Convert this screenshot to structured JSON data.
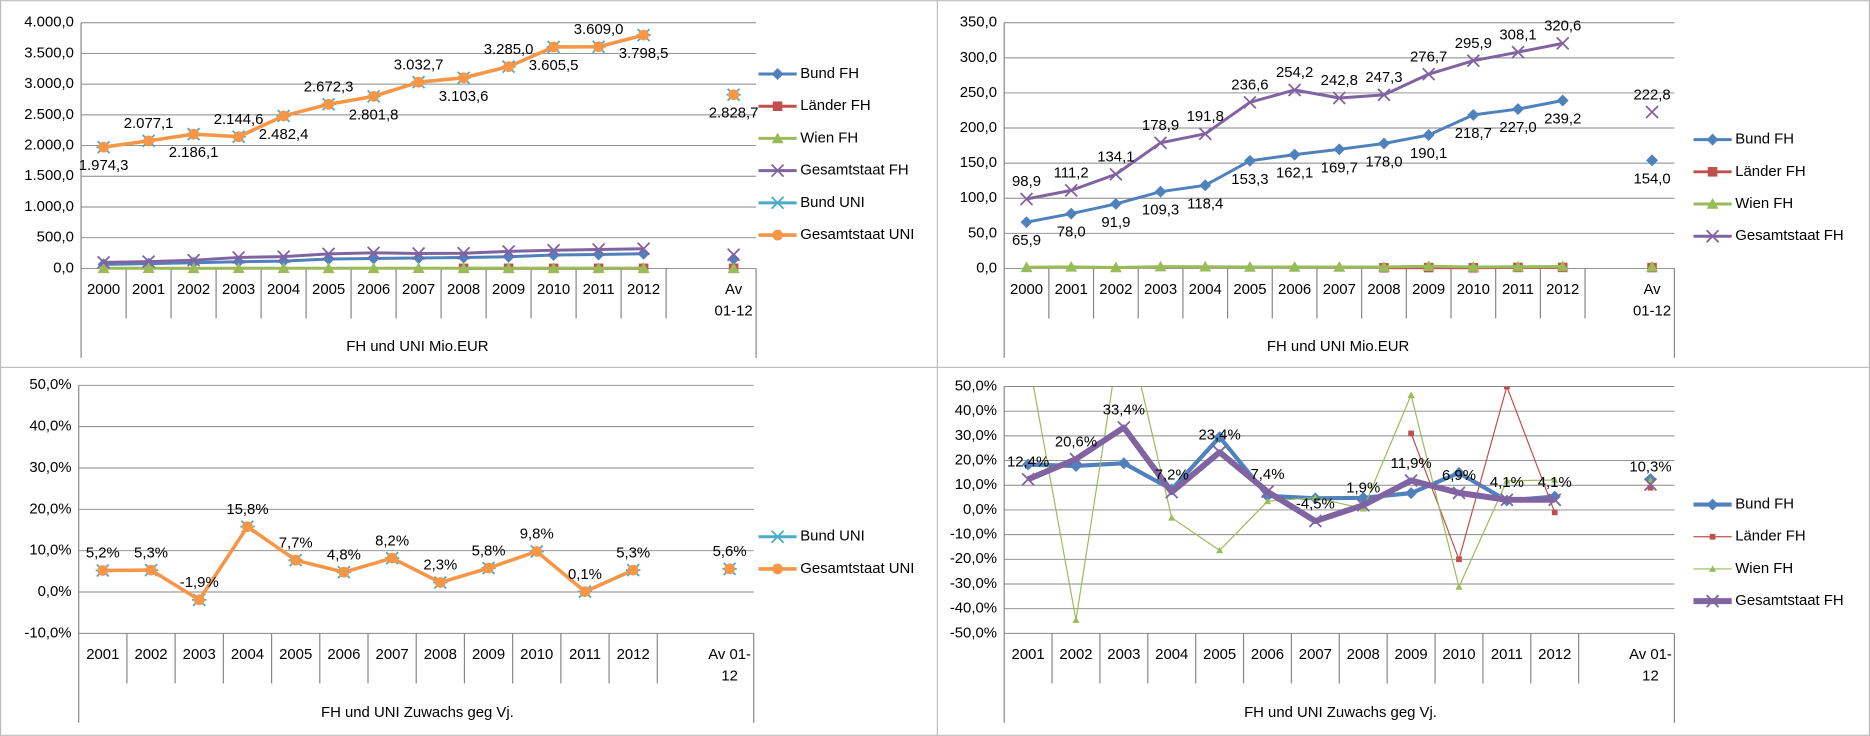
{
  "chart_data": [
    {
      "type": "line",
      "xlabel": "FH und UNI Mio.EUR",
      "categories": [
        "2000",
        "2001",
        "2002",
        "2003",
        "2004",
        "2005",
        "2006",
        "2007",
        "2008",
        "2009",
        "2010",
        "2011",
        "2012",
        null,
        "Av 01-12"
      ],
      "ylim": [
        0,
        4000
      ],
      "yticks": [
        {
          "value": 0,
          "label": "0,0"
        },
        {
          "value": 500,
          "label": "500,0"
        },
        {
          "value": 1000,
          "label": "1.000,0"
        },
        {
          "value": 1500,
          "label": "1.500,0"
        },
        {
          "value": 2000,
          "label": "2.000,0"
        },
        {
          "value": 2500,
          "label": "2.500,0"
        },
        {
          "value": 3000,
          "label": "3.000,0"
        },
        {
          "value": 3500,
          "label": "3.500,0"
        },
        {
          "value": 4000,
          "label": "4.000,0"
        }
      ],
      "grid": true,
      "legend": "right",
      "series": [
        {
          "name": "Bund FH",
          "color": "#4f81bd",
          "marker": "diamond",
          "values": [
            65.9,
            78.0,
            91.9,
            109.3,
            118.4,
            153.3,
            162.1,
            169.7,
            178.0,
            190.1,
            218.7,
            227.0,
            239.2,
            null,
            154.0
          ]
        },
        {
          "name": "Länder FH",
          "color": "#c0504d",
          "marker": "square",
          "values": [
            null,
            null,
            null,
            null,
            null,
            null,
            null,
            null,
            0.9,
            1.2,
            0.9,
            1.4,
            1.4,
            null,
            1.2
          ]
        },
        {
          "name": "Wien FH",
          "color": "#9bbb59",
          "marker": "triangle",
          "values": [
            1.6,
            2.2,
            1.3,
            2.5,
            2.4,
            2.0,
            2.0,
            2.1,
            2.1,
            3.1,
            2.1,
            2.4,
            2.7,
            null,
            2.2
          ]
        },
        {
          "name": "Gesamtstaat FH",
          "color": "#8064a2",
          "marker": "x",
          "values": [
            98.9,
            111.2,
            134.1,
            178.9,
            191.8,
            236.6,
            254.2,
            242.8,
            247.3,
            276.7,
            295.9,
            308.1,
            320.6,
            null,
            222.8
          ]
        },
        {
          "name": "Bund UNI",
          "color": "#4bacc6",
          "marker": "star",
          "values": [
            1974.3,
            2077.1,
            2186.1,
            2144.6,
            2482.4,
            2672.3,
            2801.8,
            3032.7,
            3103.6,
            3285.0,
            3605.5,
            3609.0,
            3798.5,
            null,
            2828.7
          ]
        },
        {
          "name": "Gesamtstaat UNI",
          "color": "#f79646",
          "marker": "circle",
          "values": [
            1974.3,
            2077.1,
            2186.1,
            2144.6,
            2482.4,
            2672.3,
            2801.8,
            3032.7,
            3103.6,
            3285.0,
            3605.5,
            3609.0,
            3798.5,
            null,
            2828.7
          ],
          "value_labels": [
            "1.974,3",
            "2.077,1",
            "2.186,1",
            "2.144,6",
            "2.482,4",
            "2.672,3",
            "2.801,8",
            "3.032,7",
            "3.103,6",
            "3.285,0",
            "3.605,5",
            "3.609,0",
            "3.798,5",
            null,
            "2.828,7"
          ]
        }
      ]
    },
    {
      "type": "line",
      "xlabel": "FH und UNI Mio.EUR",
      "categories": [
        "2000",
        "2001",
        "2002",
        "2003",
        "2004",
        "2005",
        "2006",
        "2007",
        "2008",
        "2009",
        "2010",
        "2011",
        "2012",
        null,
        "Av 01-12"
      ],
      "ylim": [
        0,
        350
      ],
      "yticks": [
        {
          "value": 0,
          "label": "0,0"
        },
        {
          "value": 50,
          "label": "50,0"
        },
        {
          "value": 100,
          "label": "100,0"
        },
        {
          "value": 150,
          "label": "150,0"
        },
        {
          "value": 200,
          "label": "200,0"
        },
        {
          "value": 250,
          "label": "250,0"
        },
        {
          "value": 300,
          "label": "300,0"
        },
        {
          "value": 350,
          "label": "350,0"
        }
      ],
      "grid": true,
      "legend": "right",
      "series": [
        {
          "name": "Bund FH",
          "color": "#4f81bd",
          "marker": "diamond",
          "values": [
            65.9,
            78.0,
            91.9,
            109.3,
            118.4,
            153.3,
            162.1,
            169.7,
            178.0,
            190.1,
            218.7,
            227.0,
            239.2,
            null,
            154.0
          ],
          "value_labels": [
            "65,9",
            "78,0",
            "91,9",
            "109,3",
            "118,4",
            "153,3",
            "162,1",
            "169,7",
            "178,0",
            "190,1",
            "218,7",
            "227,0",
            "239,2",
            null,
            "154,0"
          ]
        },
        {
          "name": "Länder FH",
          "color": "#c0504d",
          "marker": "square",
          "values": [
            null,
            null,
            null,
            null,
            null,
            null,
            null,
            null,
            0.9,
            1.2,
            0.9,
            1.4,
            1.4,
            null,
            1.2
          ]
        },
        {
          "name": "Wien FH",
          "color": "#9bbb59",
          "marker": "triangle",
          "values": [
            1.6,
            2.2,
            1.3,
            2.5,
            2.4,
            2.0,
            2.0,
            2.1,
            2.1,
            3.1,
            2.1,
            2.4,
            2.7,
            null,
            2.2
          ]
        },
        {
          "name": "Gesamtstaat FH",
          "color": "#8064a2",
          "marker": "x",
          "values": [
            98.9,
            111.2,
            134.1,
            178.9,
            191.8,
            236.6,
            254.2,
            242.8,
            247.3,
            276.7,
            295.9,
            308.1,
            320.6,
            null,
            222.8
          ],
          "value_labels": [
            "98,9",
            "111,2",
            "134,1",
            "178,9",
            "191,8",
            "236,6",
            "254,2",
            "242,8",
            "247,3",
            "276,7",
            "295,9",
            "308,1",
            "320,6",
            null,
            "222,8"
          ]
        }
      ]
    },
    {
      "type": "line",
      "xlabel": "FH und UNI Zuwachs geg Vj.",
      "categories": [
        "2001",
        "2002",
        "2003",
        "2004",
        "2005",
        "2006",
        "2007",
        "2008",
        "2009",
        "2010",
        "2011",
        "2012",
        null,
        "Av 01-12"
      ],
      "ylim": [
        -10,
        50
      ],
      "yticks": [
        {
          "value": -10,
          "label": "-10,0%"
        },
        {
          "value": 0,
          "label": "0,0%"
        },
        {
          "value": 10,
          "label": "10,0%"
        },
        {
          "value": 20,
          "label": "20,0%"
        },
        {
          "value": 30,
          "label": "30,0%"
        },
        {
          "value": 40,
          "label": "40,0%"
        },
        {
          "value": 50,
          "label": "50,0%"
        }
      ],
      "grid": true,
      "legend": "right",
      "series": [
        {
          "name": "Bund UNI",
          "color": "#4bacc6",
          "marker": "star",
          "values": [
            5.2,
            5.3,
            -1.9,
            15.8,
            7.7,
            4.8,
            8.2,
            2.3,
            5.8,
            9.8,
            0.1,
            5.3,
            null,
            5.6
          ]
        },
        {
          "name": "Gesamtstaat UNI",
          "color": "#f79646",
          "marker": "circle",
          "values": [
            5.2,
            5.3,
            -1.9,
            15.8,
            7.7,
            4.8,
            8.2,
            2.3,
            5.8,
            9.8,
            0.1,
            5.3,
            null,
            5.6
          ],
          "value_labels": [
            "5,2%",
            "5,3%",
            "-1,9%",
            "15,8%",
            "7,7%",
            "4,8%",
            "8,2%",
            "2,3%",
            "5,8%",
            "9,8%",
            "0,1%",
            "5,3%",
            null,
            "5,6%"
          ]
        }
      ]
    },
    {
      "type": "line",
      "xlabel": "FH und UNI Zuwachs geg Vj.",
      "categories": [
        "2001",
        "2002",
        "2003",
        "2004",
        "2005",
        "2006",
        "2007",
        "2008",
        "2009",
        "2010",
        "2011",
        "2012",
        null,
        "Av 01-12"
      ],
      "ylim": [
        -50,
        50
      ],
      "yticks": [
        {
          "value": -50,
          "label": "-50,0%"
        },
        {
          "value": -40,
          "label": "-40,0%"
        },
        {
          "value": -30,
          "label": "-30,0%"
        },
        {
          "value": -20,
          "label": "-20,0%"
        },
        {
          "value": -10,
          "label": "-10,0%"
        },
        {
          "value": 0,
          "label": "0,0%"
        },
        {
          "value": 10,
          "label": "10,0%"
        },
        {
          "value": 20,
          "label": "20,0%"
        },
        {
          "value": 30,
          "label": "30,0%"
        },
        {
          "value": 40,
          "label": "40,0%"
        },
        {
          "value": 50,
          "label": "50,0%"
        }
      ],
      "grid": true,
      "legend": "right",
      "series": [
        {
          "name": "Bund FH",
          "color": "#4f81bd",
          "marker": "diamond",
          "values": [
            18.4,
            17.8,
            18.9,
            8.3,
            29.5,
            5.7,
            4.7,
            4.9,
            6.8,
            15.0,
            3.8,
            5.4,
            null,
            12.5
          ]
        },
        {
          "name": "Länder FH",
          "color": "#c0504d",
          "marker": "square",
          "values": [
            null,
            null,
            null,
            null,
            null,
            null,
            null,
            null,
            31.0,
            -20.0,
            50.0,
            -1.0,
            null,
            9.0
          ]
        },
        {
          "name": "Wien FH",
          "color": "#9bbb59",
          "marker": "triangle",
          "values": [
            62.0,
            -44.6,
            80.0,
            -3.2,
            -16.4,
            3.5,
            5.0,
            0.5,
            46.5,
            -31.2,
            11.8,
            12.1,
            null,
            12.0
          ]
        },
        {
          "name": "Gesamtstaat FH",
          "color": "#8064a2",
          "marker": "x",
          "values": [
            12.4,
            20.6,
            33.4,
            7.2,
            23.4,
            7.4,
            -4.5,
            1.9,
            11.9,
            6.9,
            4.1,
            4.1,
            null,
            10.3
          ],
          "value_labels": [
            "12,4%",
            "20,6%",
            "33,4%",
            "7,2%",
            "23,4%",
            "7,4%",
            "-4,5%",
            "1,9%",
            "11,9%",
            "6,9%",
            "4,1%",
            "4,1%",
            null,
            "10,3%"
          ]
        }
      ]
    }
  ]
}
